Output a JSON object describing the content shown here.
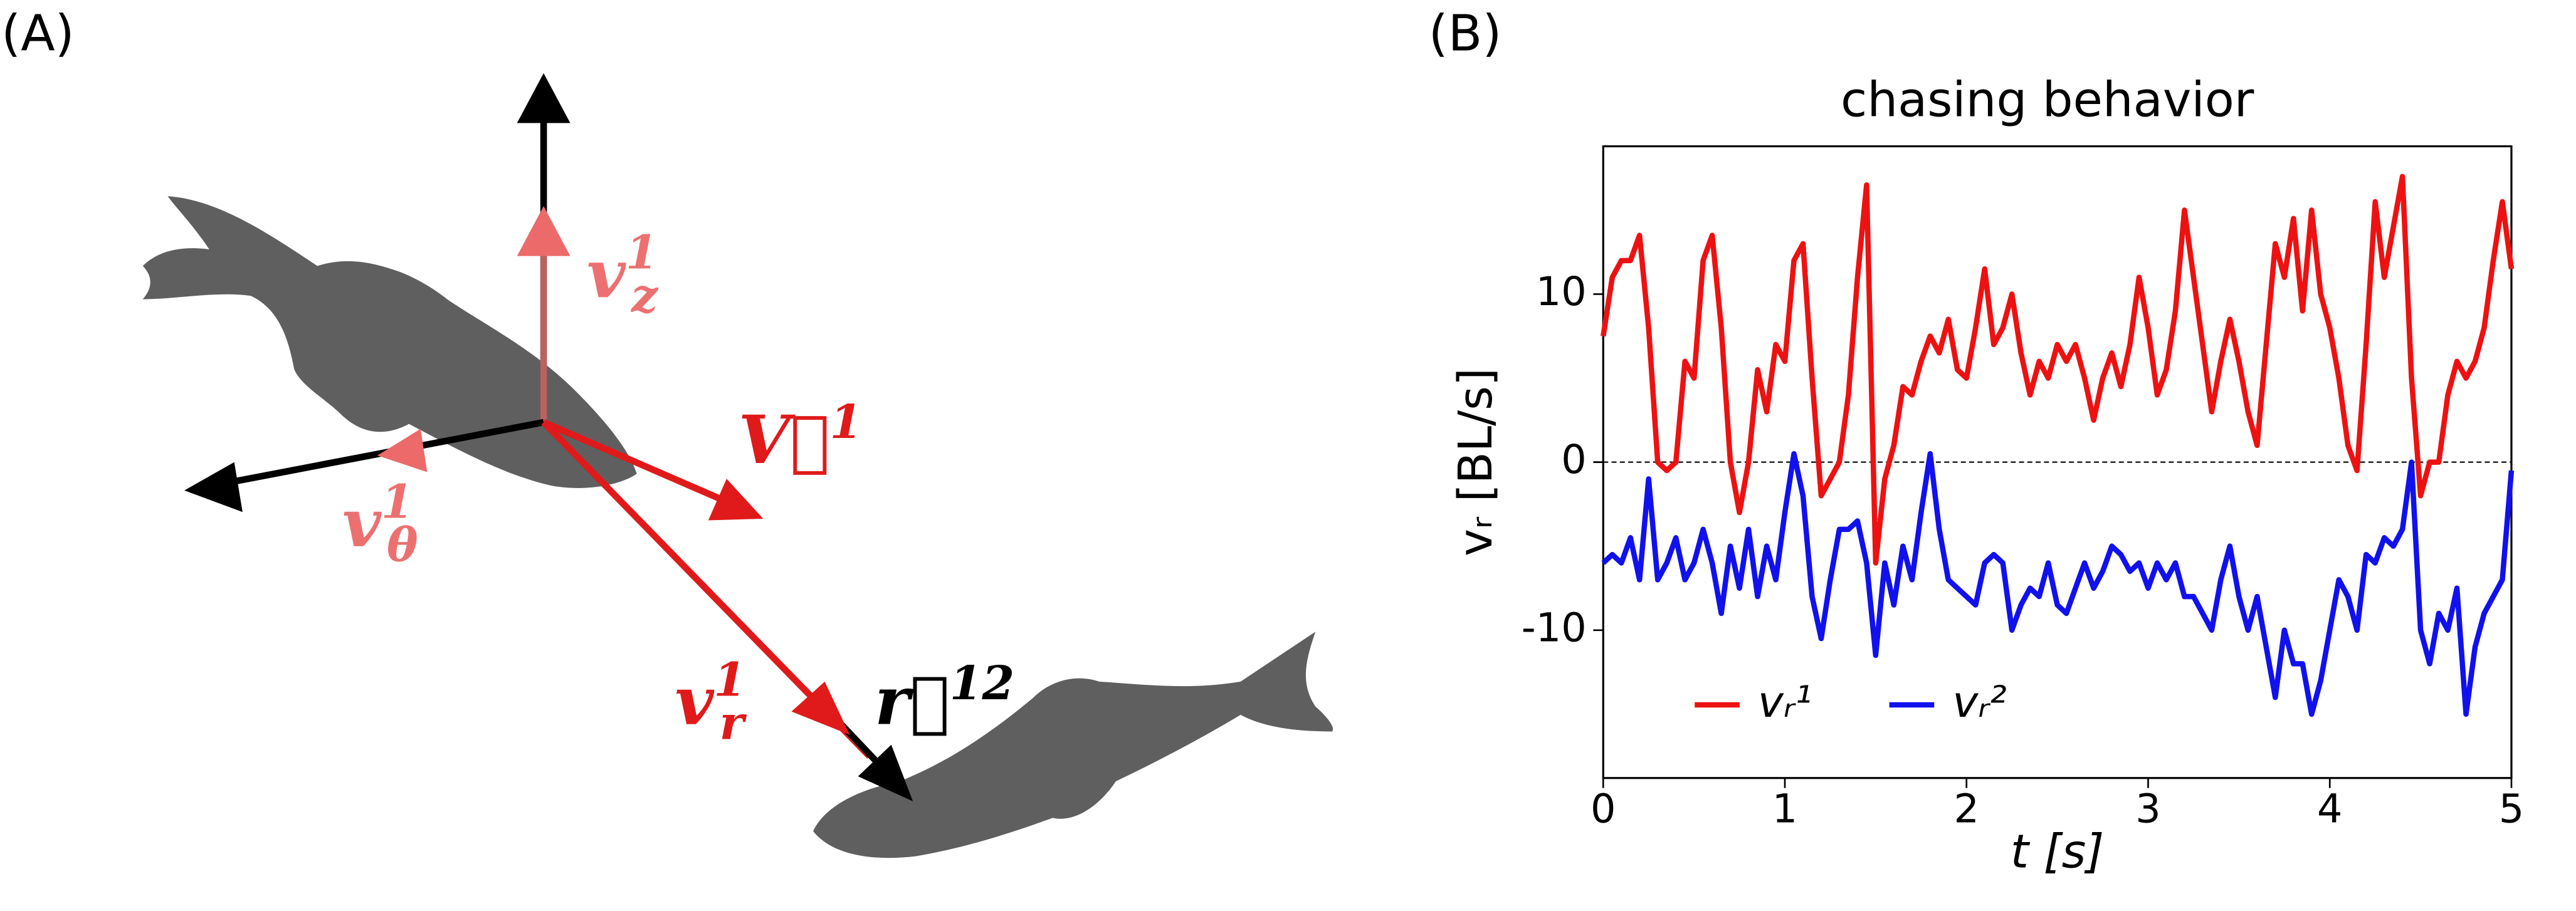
{
  "panels": [
    "(A)",
    "(B)"
  ],
  "diagram": {
    "v_z": {
      "base": "v",
      "sub": "z",
      "sup": "1"
    },
    "V": {
      "base": "V⃗",
      "sup": "1"
    },
    "v_theta": {
      "base": "v",
      "sub": "θ",
      "sup": "1"
    },
    "v_r": {
      "base": "v",
      "sub": "r",
      "sup": "1"
    },
    "r": {
      "base": "r⃗",
      "sup": "12"
    }
  },
  "chart_data": {
    "type": "line",
    "title": "chasing behavior",
    "xlabel": "t [s]",
    "ylabel": "vᵣ [BL/s]",
    "x": [
      0,
      0.05,
      0.1,
      0.15,
      0.2,
      0.25,
      0.3,
      0.35,
      0.4,
      0.45,
      0.5,
      0.55,
      0.6,
      0.65,
      0.7,
      0.75,
      0.8,
      0.85,
      0.9,
      0.95,
      1.0,
      1.05,
      1.1,
      1.15,
      1.2,
      1.25,
      1.3,
      1.35,
      1.4,
      1.45,
      1.5,
      1.55,
      1.6,
      1.65,
      1.7,
      1.75,
      1.8,
      1.85,
      1.9,
      1.95,
      2.0,
      2.05,
      2.1,
      2.15,
      2.2,
      2.25,
      2.3,
      2.35,
      2.4,
      2.45,
      2.5,
      2.55,
      2.6,
      2.65,
      2.7,
      2.75,
      2.8,
      2.85,
      2.9,
      2.95,
      3.0,
      3.05,
      3.1,
      3.15,
      3.2,
      3.25,
      3.3,
      3.35,
      3.4,
      3.45,
      3.5,
      3.55,
      3.6,
      3.65,
      3.7,
      3.75,
      3.8,
      3.85,
      3.9,
      3.95,
      4.0,
      4.05,
      4.1,
      4.15,
      4.2,
      4.25,
      4.3,
      4.35,
      4.4,
      4.45,
      4.5,
      4.55,
      4.6,
      4.65,
      4.7,
      4.75,
      4.8,
      4.85,
      4.9,
      4.95,
      5.0
    ],
    "series": [
      {
        "name": "vᵣ¹",
        "color": "#ee1111",
        "values": [
          7.5,
          11,
          12,
          12,
          13.5,
          8,
          0,
          -0.5,
          0,
          6,
          5,
          12,
          13.5,
          8,
          0,
          -3,
          0,
          5.5,
          3,
          7,
          6,
          12,
          13,
          5,
          -2,
          -1,
          0,
          4,
          11,
          16.5,
          -6,
          -1,
          1,
          4.5,
          4,
          6,
          7.5,
          6.5,
          8.5,
          5.5,
          5,
          8,
          11.5,
          7,
          8,
          10,
          6.5,
          4,
          6,
          5,
          7,
          6,
          7,
          5,
          2.5,
          5,
          6.5,
          4.5,
          7,
          11,
          8,
          4,
          5.5,
          9,
          15,
          11,
          7,
          3,
          6,
          8.5,
          6,
          3,
          1,
          7,
          13,
          11,
          14.5,
          9,
          15,
          10,
          8,
          5,
          1,
          -0.5,
          7,
          15.5,
          11,
          14,
          17,
          5,
          -2,
          0,
          0,
          4,
          6,
          5,
          6,
          8,
          12,
          15.5,
          11.5
        ]
      },
      {
        "name": "vᵣ²",
        "color": "#1111ee",
        "values": [
          -6,
          -5.5,
          -6,
          -4.5,
          -7,
          -1,
          -7,
          -6,
          -4.5,
          -7,
          -6,
          -4,
          -6,
          -9,
          -5,
          -7.5,
          -4,
          -8,
          -5,
          -7,
          -3,
          0.5,
          -2,
          -8,
          -10.5,
          -7,
          -4,
          -4,
          -3.5,
          -6,
          -11.5,
          -6,
          -8.5,
          -5,
          -7,
          -3,
          0.5,
          -4,
          -7,
          -7.5,
          -8,
          -8.5,
          -6,
          -5.5,
          -6,
          -10,
          -8.5,
          -7.5,
          -8,
          -6,
          -8.5,
          -9,
          -7.5,
          -6,
          -7.5,
          -6.5,
          -5,
          -5.5,
          -6.5,
          -6,
          -7.5,
          -6,
          -7,
          -6,
          -8,
          -8,
          -9,
          -10,
          -7,
          -5,
          -8,
          -10,
          -8,
          -11,
          -14,
          -10,
          -12,
          -12,
          -15,
          -13,
          -10,
          -7,
          -8,
          -10,
          -5.5,
          -6,
          -4.5,
          -5,
          -4,
          0,
          -10,
          -12,
          -9,
          -10,
          -7.5,
          -15,
          -11,
          -9,
          -8,
          -7,
          -0.5
        ]
      }
    ],
    "xlim": [
      0,
      5
    ],
    "xticks": [
      0,
      1,
      2,
      3,
      4,
      5
    ],
    "ylim": [
      -18.8,
      18.8
    ],
    "yticks": [
      -10,
      0,
      10
    ],
    "reference_line": {
      "y": 0,
      "style": "dashed"
    },
    "legend": "lower left"
  }
}
